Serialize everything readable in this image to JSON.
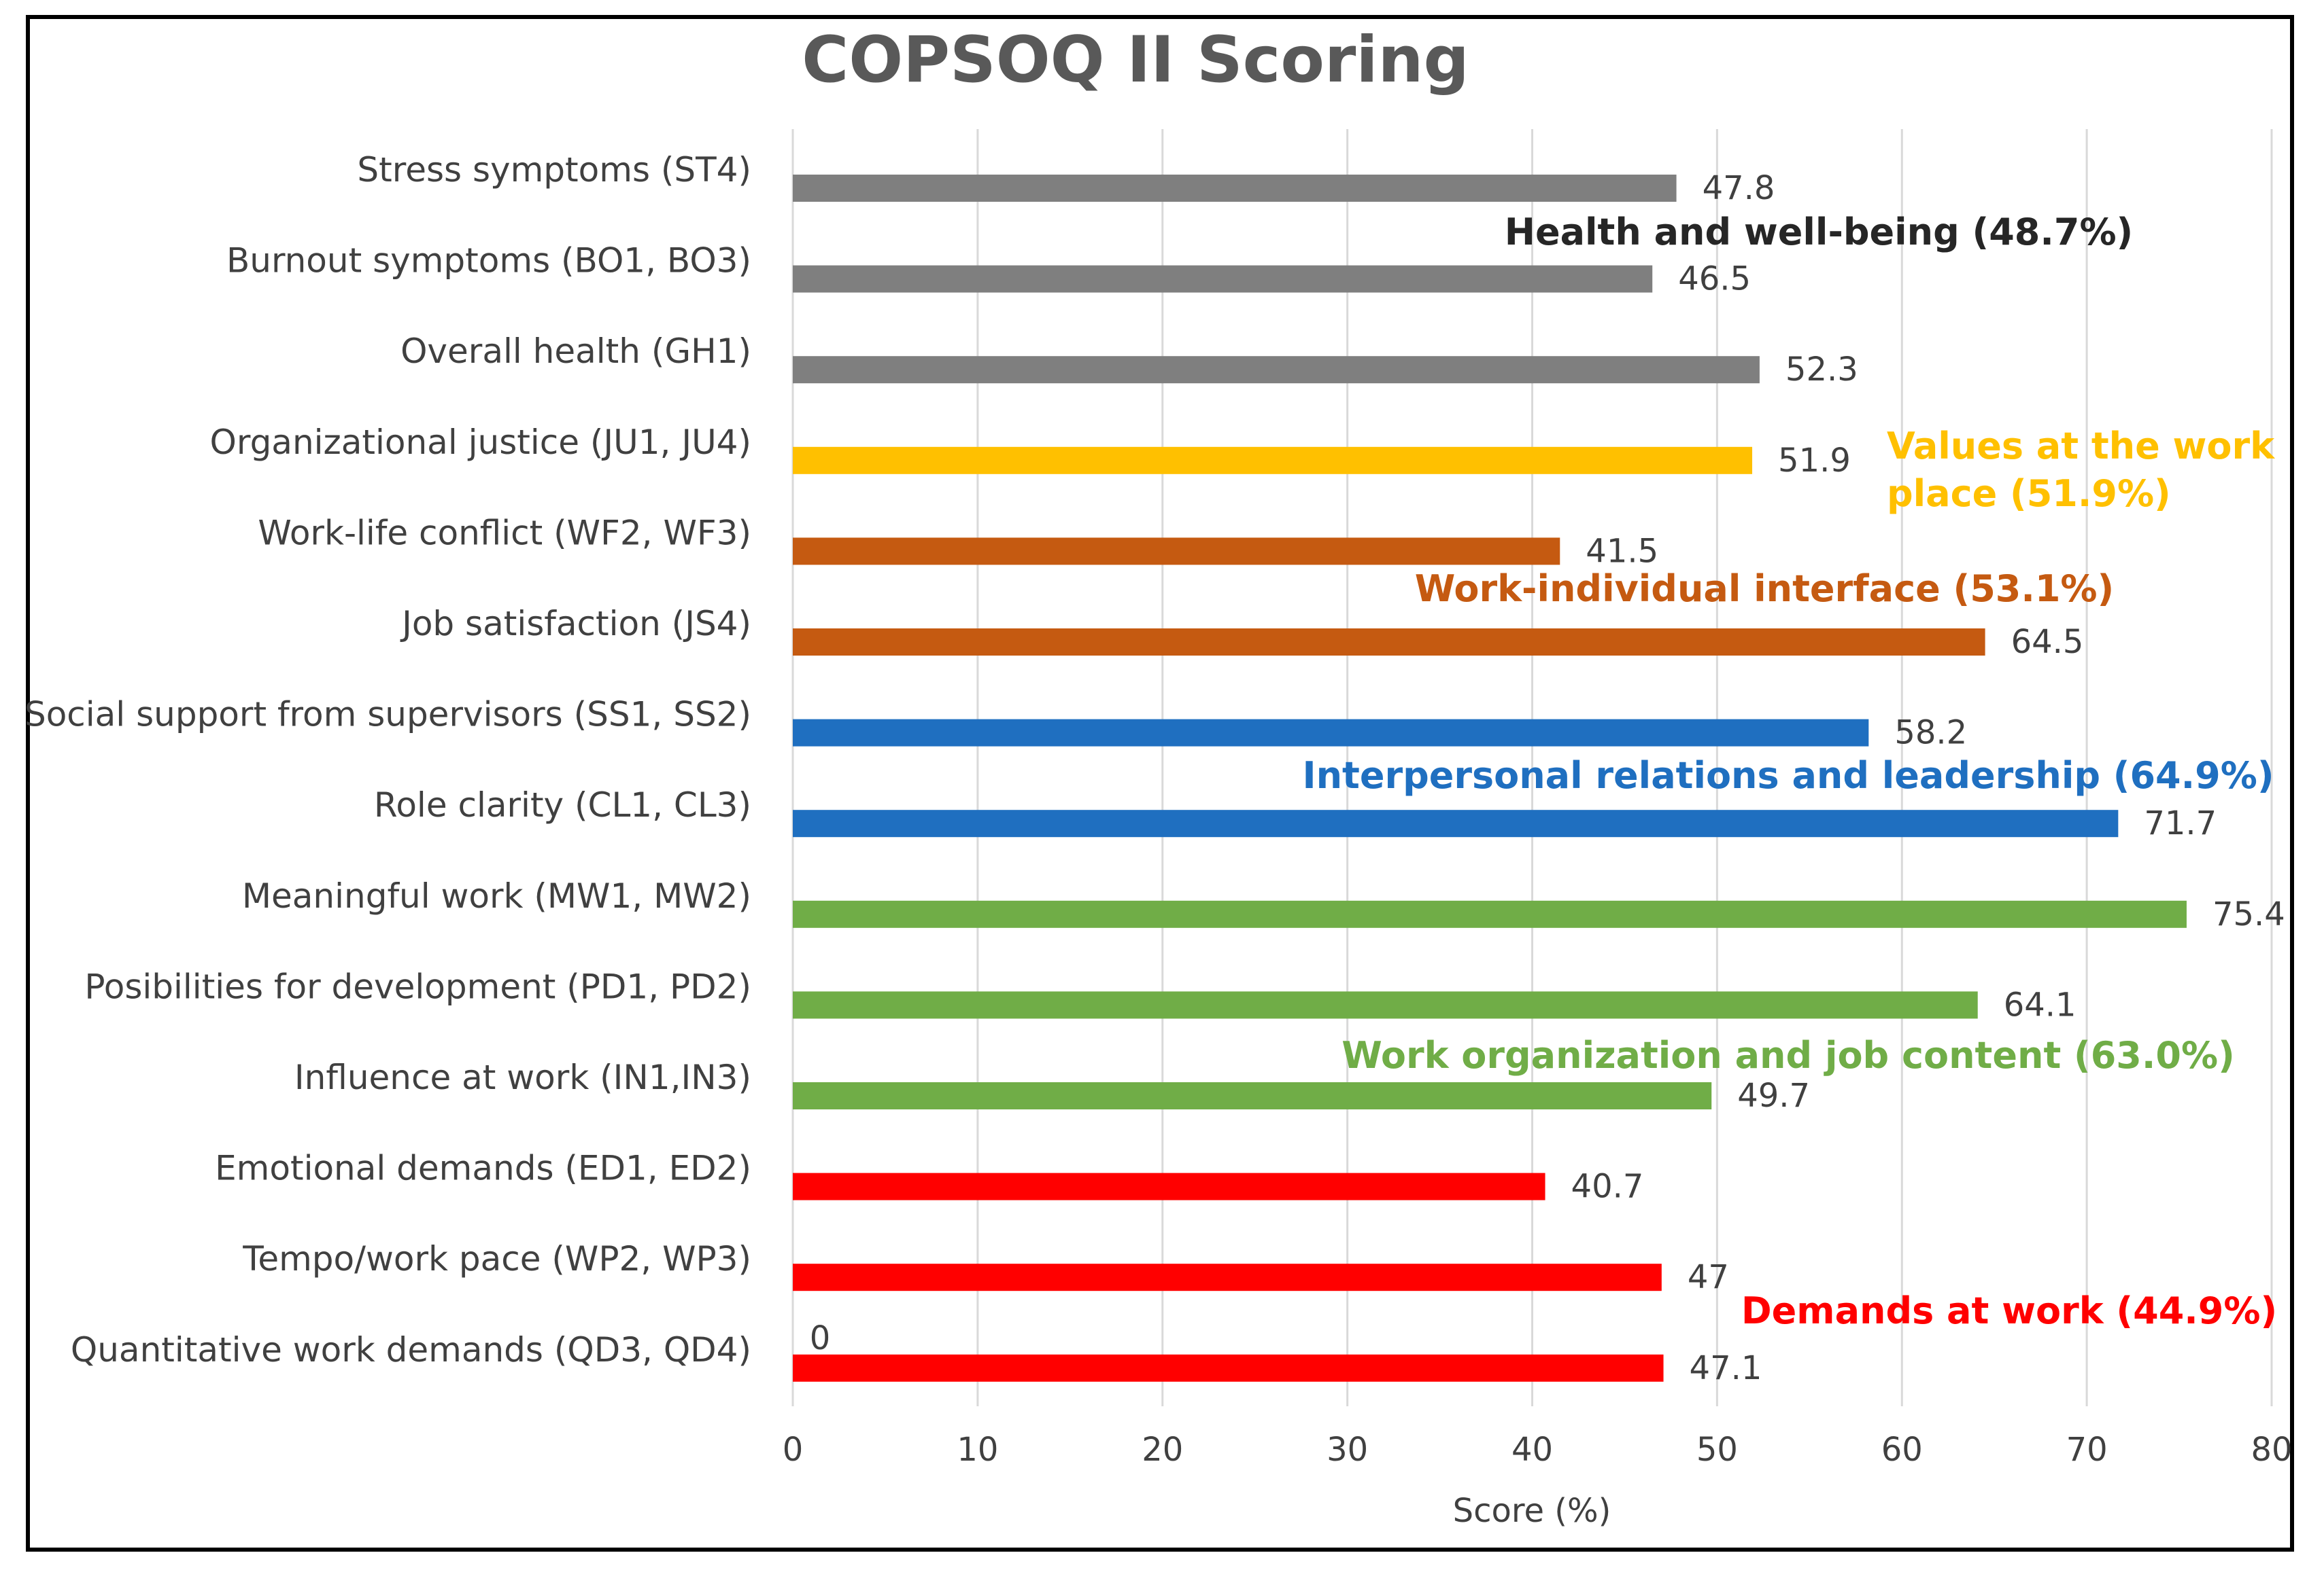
{
  "chart_data": {
    "type": "bar",
    "orientation": "horizontal",
    "title": "COPSOQ II Scoring",
    "xlabel": "Score (%)",
    "ylabel": "",
    "xlim": [
      0,
      80
    ],
    "xticks": [
      0,
      10,
      20,
      30,
      40,
      50,
      60,
      70,
      80
    ],
    "grid": true,
    "categories": [
      "Stress symptoms (ST4)",
      "Burnout symptoms (BO1, BO3)",
      "Overall health (GH1)",
      "Organizational justice (JU1, JU4)",
      "Work-life conflict (WF2, WF3)",
      "Job satisfaction (JS4)",
      "Social support from supervisors (SS1, SS2)",
      "Role clarity (CL1, CL3)",
      "Meaningful work (MW1, MW2)",
      "Posibilities for development (PD1, PD2)",
      "Influence at work (IN1,IN3)",
      "Emotional demands (ED1, ED2)",
      "Tempo/work pace (WP2, WP3)",
      "Quantitative work demands (QD3, QD4)"
    ],
    "values": [
      47.8,
      46.5,
      52.3,
      51.9,
      41.5,
      64.5,
      58.2,
      71.7,
      75.4,
      64.1,
      49.7,
      40.7,
      47,
      47.1
    ],
    "value_labels": [
      "47.8",
      "46.5",
      "52.3",
      "51.9",
      "41.5",
      "64.5",
      "58.2",
      "71.7",
      "75.4",
      "64.1",
      "49.7",
      "40.7",
      "47",
      "47.1"
    ],
    "bar_group": [
      0,
      0,
      0,
      1,
      2,
      2,
      3,
      3,
      4,
      4,
      4,
      5,
      5,
      5
    ],
    "groups": [
      {
        "lines": [
          "Health and well-being (48.7%)"
        ],
        "color": "#262626",
        "bar_color": "#7f7f7f"
      },
      {
        "lines": [
          "Values at the work",
          "place (51.9%)"
        ],
        "color": "#ffc000",
        "bar_color": "#ffc000"
      },
      {
        "lines": [
          "Work-individual interface (53.1%)"
        ],
        "color": "#c55a11",
        "bar_color": "#c55a11"
      },
      {
        "lines": [
          "Interpersonal relations and leadership (64.9%)"
        ],
        "color": "#1f6fc0",
        "bar_color": "#1f6fc0"
      },
      {
        "lines": [
          "Work organization and job content (63.0%)"
        ],
        "color": "#70ad47",
        "bar_color": "#70ad47"
      },
      {
        "lines": [
          "Demands at work (44.9%)"
        ],
        "color": "#ff0000",
        "bar_color": "#ff0000"
      }
    ],
    "extra_labels": [
      "0"
    ],
    "colors": {
      "grid": "#d9d9d9",
      "text": "#404040",
      "title": "#595959"
    }
  }
}
